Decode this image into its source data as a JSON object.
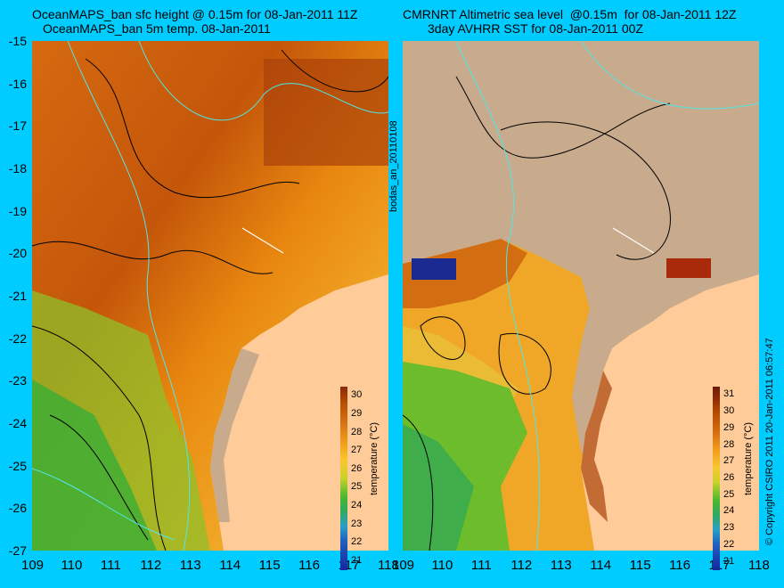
{
  "titles": {
    "left_line1": "OceanMAPS_ban sfc height @ 0.15m for 08-Jan-2011 11Z",
    "left_line2": "OceanMAPS_ban 5m temp. 08-Jan-2011",
    "right_line1": "CMRNRT Altimetric sea level  @0.15m  for 08-Jan-2011 12Z",
    "right_line2": "3day AVHRR SST for 08-Jan-2011 00Z"
  },
  "side_labels": {
    "center": "bodas_an_20110108",
    "right": "© Copyright CSIRO 2011    20-Jan-2011 06:57:47"
  },
  "axes": {
    "x_ticks": [
      "109",
      "110",
      "111",
      "112",
      "113",
      "114",
      "115",
      "116",
      "117",
      "118"
    ],
    "y_ticks": [
      "-15",
      "-16",
      "-17",
      "-18",
      "-19",
      "-20",
      "-21",
      "-22",
      "-23",
      "-24",
      "-25",
      "-26",
      "-27"
    ]
  },
  "colorbar_left": {
    "title": "temperature (°C)",
    "labels": [
      "30",
      "29",
      "28",
      "27",
      "26",
      "25",
      "24",
      "23",
      "22",
      "21"
    ]
  },
  "colorbar_right": {
    "title": "temperature (°C)",
    "labels": [
      "31",
      "30",
      "29",
      "28",
      "27",
      "26",
      "25",
      "24",
      "23",
      "22",
      "21"
    ]
  },
  "colors": {
    "background": "#00ccff",
    "land": "#ffcc99",
    "cloud": "#c8aa8c",
    "warm": "#b34a00",
    "mid": "#f09a1a",
    "cool": "#4ab82e",
    "contour": "#50e6e6"
  }
}
